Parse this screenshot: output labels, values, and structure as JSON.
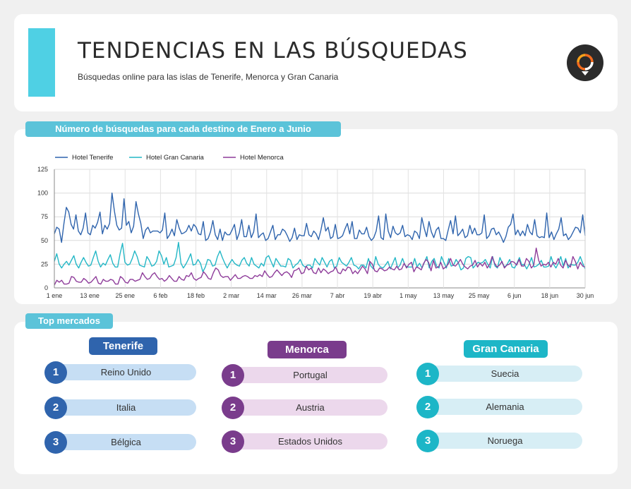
{
  "header": {
    "title": "TENDENCIAS EN LAS BÚSQUEDAS",
    "subtitle": "Búsquedas online para las islas de Tenerife, Menorca y Gran Canaria",
    "logo_icon": "location-pin-logo-icon"
  },
  "chart_section": {
    "title": "Número de búsquedas para cada destino de Enero a Junio"
  },
  "chart_data": {
    "type": "line",
    "ylim": [
      0,
      125
    ],
    "yticks": [
      "0",
      "25",
      "50",
      "75",
      "100",
      "125"
    ],
    "xticks": [
      "1 ene",
      "13 ene",
      "25 ene",
      "6 feb",
      "18 feb",
      "2 mar",
      "14 mar",
      "26 mar",
      "7 abr",
      "19 abr",
      "1 may",
      "13 may",
      "25 may",
      "6 jun",
      "18 jun",
      "30 jun"
    ],
    "grid": true,
    "legend_position": "top-left",
    "x_start": "1 ene",
    "x_end": "30 jun",
    "series": [
      {
        "name": "Hotel Tenerife",
        "color": "#2f64ad",
        "values": [
          57,
          64,
          62,
          48,
          68,
          85,
          80,
          67,
          62,
          77,
          60,
          56,
          63,
          79,
          58,
          56,
          66,
          63,
          69,
          80,
          57,
          66,
          62,
          68,
          100,
          81,
          66,
          61,
          63,
          94,
          66,
          70,
          58,
          65,
          91,
          78,
          68,
          52,
          61,
          64,
          58,
          60,
          60,
          60,
          58,
          61,
          79,
          52,
          56,
          62,
          55,
          72,
          63,
          57,
          58,
          60,
          66,
          60,
          67,
          64,
          57,
          56,
          70,
          50,
          52,
          59,
          71,
          56,
          51,
          62,
          50,
          59,
          56,
          56,
          61,
          67,
          51,
          58,
          72,
          54,
          54,
          66,
          53,
          59,
          78,
          53,
          56,
          58,
          50,
          52,
          59,
          66,
          51,
          56,
          56,
          62,
          60,
          55,
          49,
          53,
          63,
          51,
          56,
          55,
          55,
          68,
          56,
          54,
          60,
          57,
          51,
          61,
          74,
          60,
          64,
          52,
          54,
          67,
          52,
          53,
          55,
          62,
          68,
          57,
          70,
          52,
          52,
          61,
          57,
          57,
          64,
          54,
          50,
          53,
          60,
          76,
          53,
          51,
          78,
          60,
          53,
          65,
          58,
          56,
          58,
          66,
          54,
          56,
          55,
          51,
          60,
          58,
          52,
          74,
          63,
          54,
          70,
          59,
          53,
          61,
          64,
          52,
          52,
          50,
          61,
          71,
          57,
          76,
          55,
          58,
          62,
          53,
          55,
          66,
          57,
          63,
          56,
          56,
          58,
          77,
          52,
          55,
          62,
          63,
          56,
          59,
          54,
          48,
          54,
          64,
          67,
          78,
          56,
          61,
          55,
          60,
          55,
          67,
          59,
          56,
          72,
          55,
          53,
          54,
          53,
          79,
          53,
          59,
          51,
          57,
          62,
          74,
          55,
          57,
          51,
          54,
          59,
          64,
          63,
          58,
          77,
          55
        ]
      },
      {
        "name": "Hotel Gran Canaria",
        "color": "#23b7c6",
        "values": [
          28,
          36,
          25,
          21,
          25,
          28,
          24,
          29,
          34,
          25,
          21,
          27,
          32,
          27,
          23,
          24,
          32,
          39,
          28,
          22,
          26,
          24,
          30,
          35,
          26,
          22,
          22,
          36,
          47,
          27,
          24,
          25,
          31,
          39,
          33,
          24,
          23,
          22,
          33,
          29,
          23,
          24,
          28,
          39,
          34,
          25,
          32,
          22,
          23,
          24,
          32,
          48,
          26,
          21,
          25,
          30,
          36,
          24,
          25,
          30,
          26,
          17,
          22,
          30,
          29,
          23,
          24,
          33,
          39,
          32,
          26,
          21,
          26,
          30,
          26,
          24,
          23,
          29,
          32,
          26,
          23,
          32,
          25,
          23,
          21,
          26,
          23,
          32,
          34,
          28,
          22,
          31,
          27,
          23,
          23,
          22,
          31,
          29,
          21,
          24,
          26,
          30,
          24,
          22,
          24,
          24,
          21,
          31,
          27,
          24,
          32,
          27,
          22,
          28,
          30,
          21,
          23,
          32,
          27,
          25,
          23,
          27,
          32,
          24,
          23,
          20,
          24,
          24,
          21,
          31,
          23,
          20,
          33,
          25,
          22,
          21,
          24,
          28,
          20,
          26,
          32,
          21,
          24,
          31,
          24,
          22,
          22,
          22,
          31,
          22,
          26,
          21,
          27,
          33,
          21,
          28,
          31,
          23,
          21,
          33,
          27,
          21,
          31,
          23,
          24,
          30,
          26,
          19,
          21,
          31,
          33,
          32,
          21,
          24,
          27,
          26,
          27,
          30,
          25,
          21,
          33,
          23,
          21,
          32,
          26,
          22,
          25,
          30,
          22,
          21,
          26,
          32,
          24,
          25,
          20,
          25,
          32,
          22,
          23,
          25,
          29,
          22,
          22,
          23,
          33,
          25,
          21,
          26,
          33,
          23,
          31,
          21,
          25,
          24,
          24,
          27,
          33,
          26,
          20
        ]
      },
      {
        "name": "Hotel Menorca",
        "color": "#8e3c9a",
        "values": [
          3,
          8,
          6,
          8,
          4,
          4,
          5,
          12,
          11,
          7,
          6,
          6,
          10,
          8,
          5,
          6,
          9,
          12,
          5,
          4,
          9,
          7,
          7,
          9,
          8,
          4,
          4,
          12,
          10,
          6,
          5,
          9,
          9,
          7,
          8,
          9,
          16,
          12,
          9,
          10,
          14,
          16,
          12,
          9,
          10,
          7,
          9,
          13,
          10,
          7,
          7,
          12,
          9,
          8,
          13,
          12,
          16,
          10,
          8,
          10,
          11,
          17,
          14,
          10,
          9,
          16,
          21,
          19,
          13,
          11,
          12,
          12,
          8,
          11,
          14,
          10,
          10,
          12,
          13,
          12,
          10,
          10,
          13,
          12,
          14,
          12,
          18,
          14,
          11,
          12,
          16,
          19,
          16,
          13,
          16,
          17,
          15,
          11,
          18,
          19,
          21,
          15,
          16,
          23,
          19,
          21,
          16,
          15,
          21,
          16,
          20,
          18,
          15,
          17,
          18,
          22,
          16,
          15,
          20,
          18,
          22,
          21,
          15,
          18,
          15,
          19,
          23,
          20,
          15,
          28,
          25,
          18,
          17,
          21,
          20,
          18,
          19,
          22,
          20,
          19,
          23,
          19,
          20,
          26,
          21,
          25,
          27,
          17,
          22,
          21,
          19,
          26,
          30,
          27,
          18,
          29,
          21,
          22,
          27,
          20,
          22,
          25,
          31,
          24,
          23,
          26,
          30,
          25,
          22,
          20,
          23,
          24,
          29,
          22,
          26,
          23,
          27,
          21,
          25,
          33,
          26,
          22,
          24,
          28,
          21,
          24,
          25,
          28,
          27,
          24,
          30,
          23,
          23,
          31,
          28,
          21,
          24,
          42,
          29,
          23,
          25,
          24,
          27,
          22,
          27,
          25,
          31,
          24,
          21,
          29,
          24,
          22,
          33,
          28,
          20,
          27,
          23,
          22
        ]
      }
    ]
  },
  "markets": {
    "title": "Top mercados",
    "columns": [
      {
        "name": "Tenerife",
        "color": "#2f64ad",
        "bar_color": "#c6def4",
        "items": [
          {
            "rank": "1",
            "label": "Reino Unido"
          },
          {
            "rank": "2",
            "label": "Italia"
          },
          {
            "rank": "3",
            "label": "Bélgica"
          }
        ]
      },
      {
        "name": "Menorca",
        "color": "#7a3c8c",
        "bar_color": "#ecd8ec",
        "items": [
          {
            "rank": "1",
            "label": "Portugal"
          },
          {
            "rank": "2",
            "label": "Austria"
          },
          {
            "rank": "3",
            "label": "Estados Unidos"
          }
        ]
      },
      {
        "name": "Gran Canaria",
        "color": "#1db6c7",
        "bar_color": "#d7eef5",
        "items": [
          {
            "rank": "1",
            "label": "Suecia"
          },
          {
            "rank": "2",
            "label": "Alemania"
          },
          {
            "rank": "3",
            "label": "Noruega"
          }
        ]
      }
    ]
  }
}
